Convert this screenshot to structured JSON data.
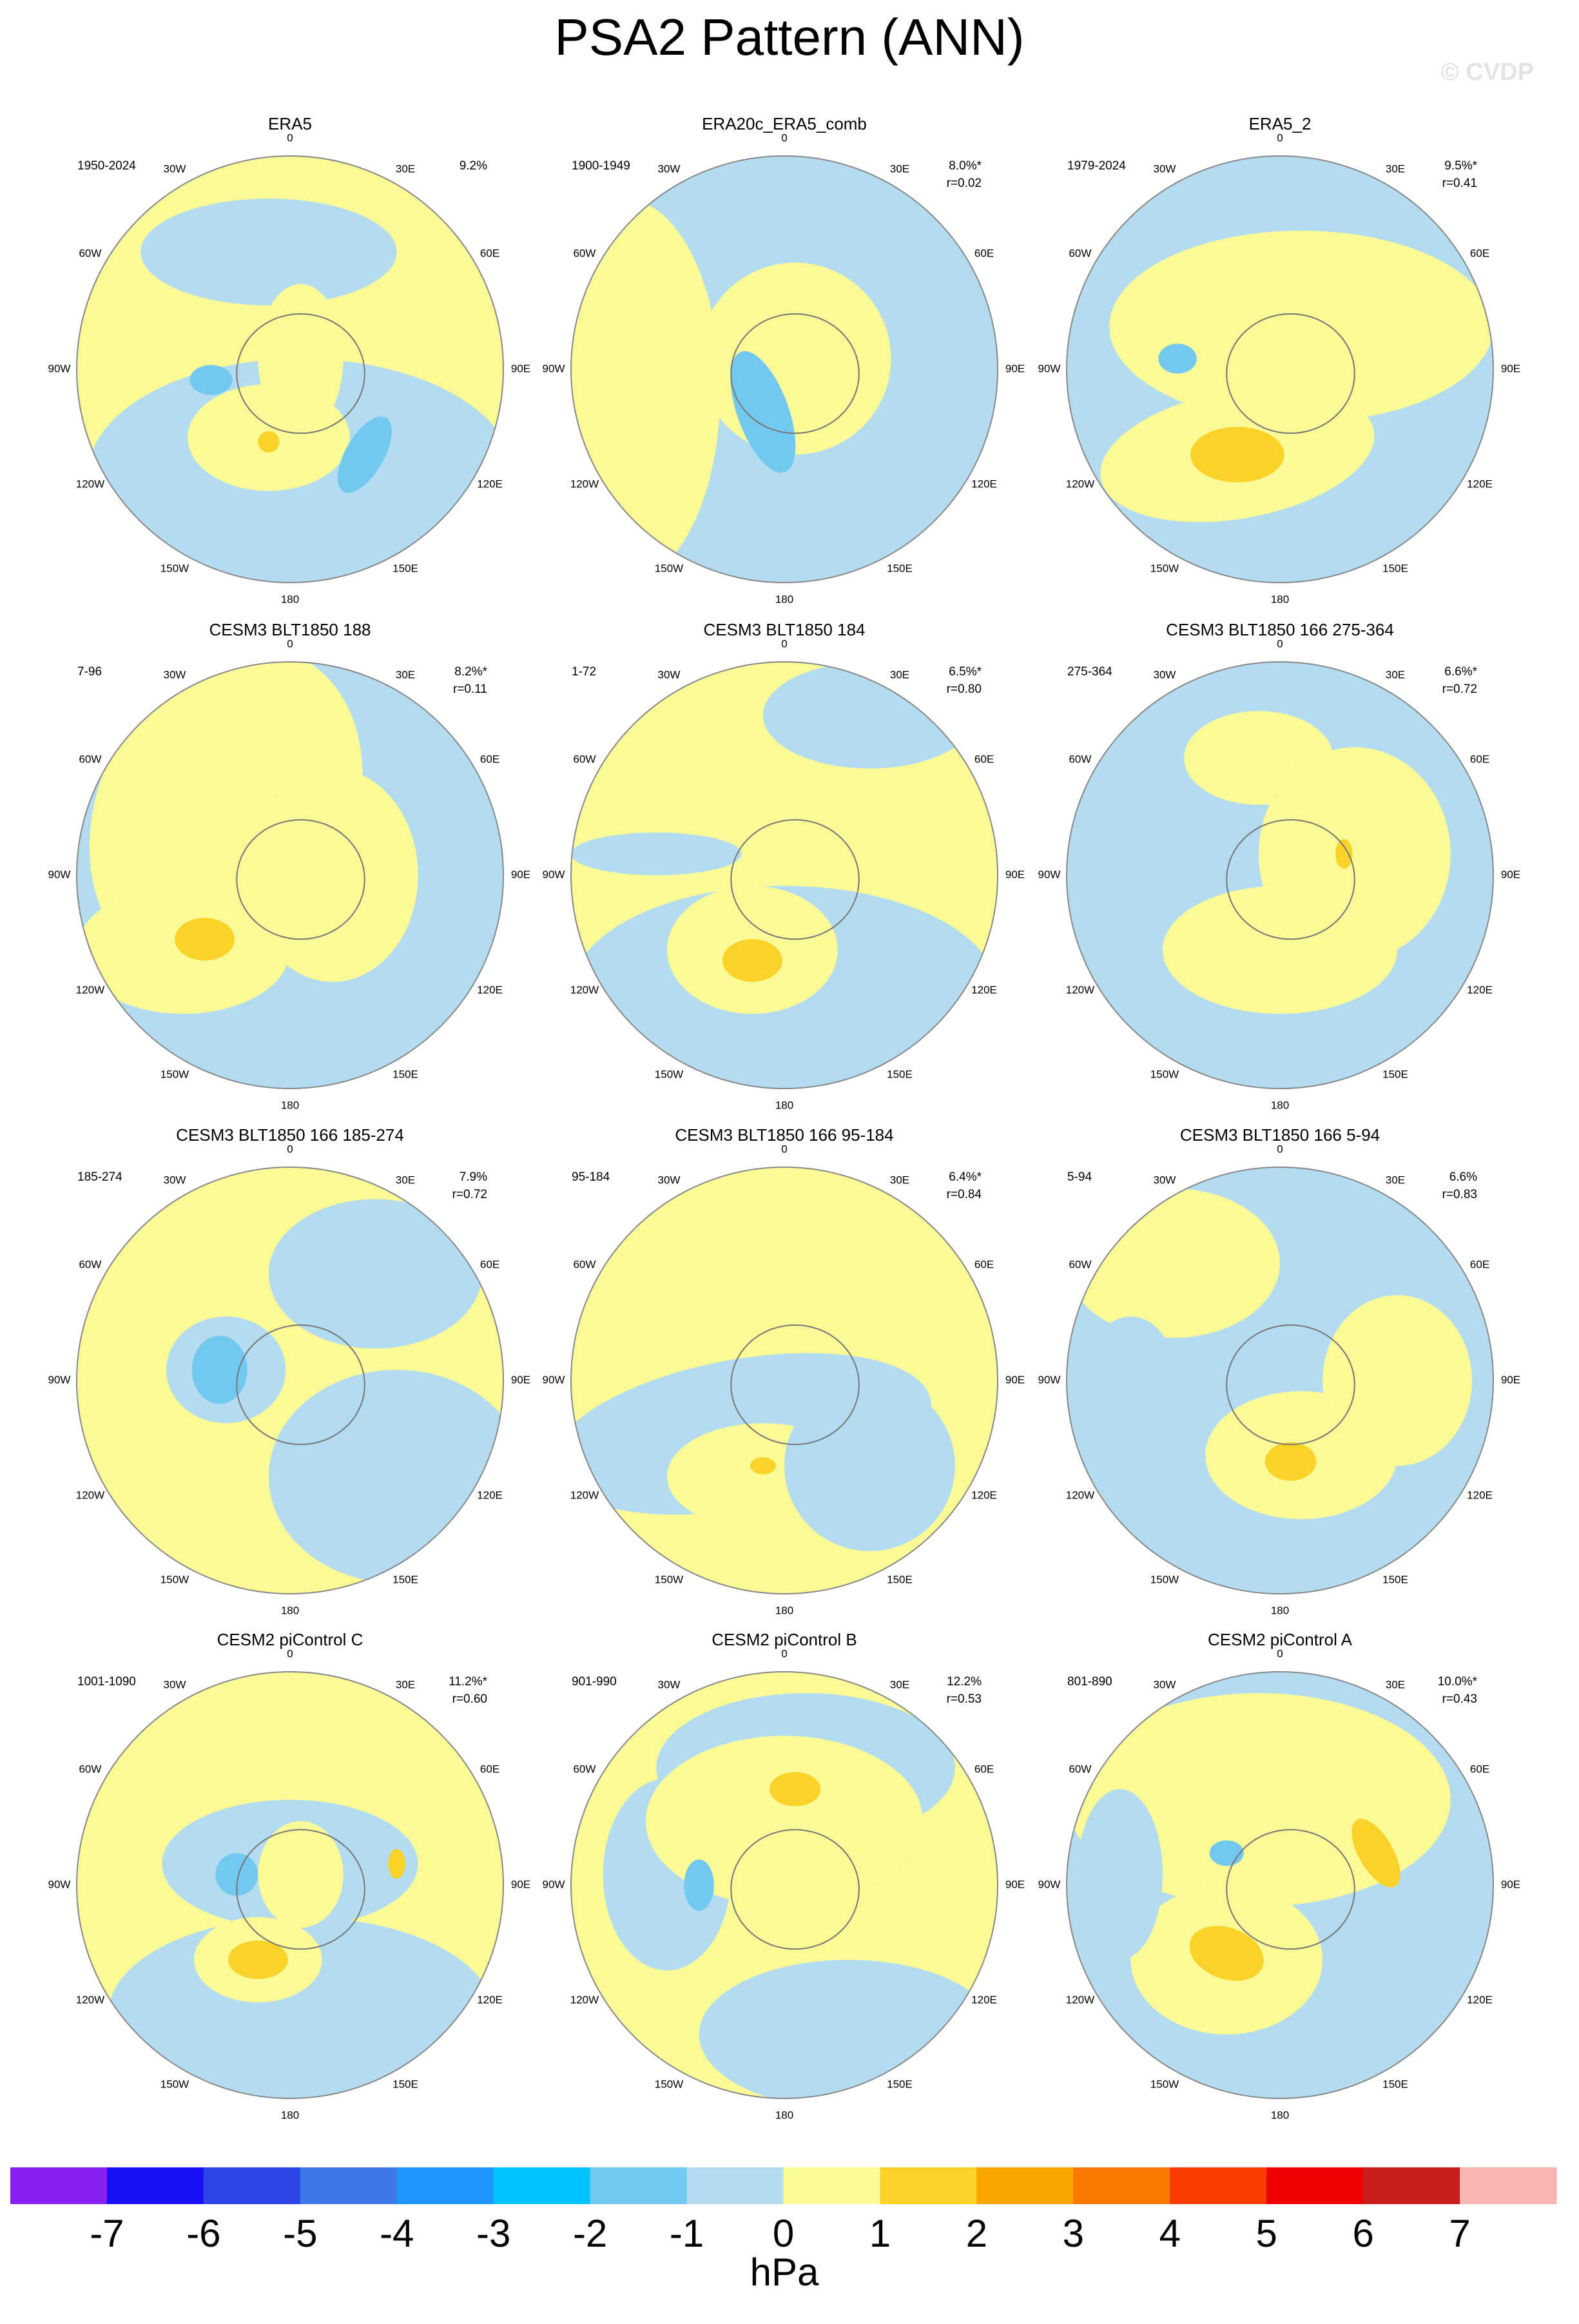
{
  "header": {
    "title": "PSA2 Pattern (ANN)",
    "watermark": "© CVDP"
  },
  "longitude_labels": [
    "0",
    "30E",
    "60E",
    "90E",
    "120E",
    "150E",
    "180",
    "150W",
    "120W",
    "90W",
    "60W",
    "30W"
  ],
  "panels": [
    {
      "title": "ERA5",
      "period": "1950-2024",
      "variance": "9.2%"
    },
    {
      "title": "ERA20c_ERA5_comb",
      "period": "1900-1949",
      "variance": "8.0%*",
      "correlation": "r=0.02"
    },
    {
      "title": "ERA5_2",
      "period": "1979-2024",
      "variance": "9.5%*",
      "correlation": "r=0.41"
    },
    {
      "title": "CESM3 BLT1850 188",
      "period": "7-96",
      "variance": "8.2%*",
      "correlation": "r=0.11"
    },
    {
      "title": "CESM3 BLT1850 184",
      "period": "1-72",
      "variance": "6.5%*",
      "correlation": "r=0.80"
    },
    {
      "title": "CESM3 BLT1850 166 275-364",
      "period": "275-364",
      "variance": "6.6%*",
      "correlation": "r=0.72"
    },
    {
      "title": "CESM3 BLT1850 166 185-274",
      "period": "185-274",
      "variance": "7.9%",
      "correlation": "r=0.72"
    },
    {
      "title": "CESM3 BLT1850 166 95-184",
      "period": "95-184",
      "variance": "6.4%*",
      "correlation": "r=0.84"
    },
    {
      "title": "CESM3 BLT1850 166 5-94",
      "period": "5-94",
      "variance": "6.6%",
      "correlation": "r=0.83"
    },
    {
      "title": "CESM2 piControl C",
      "period": "1001-1090",
      "variance": "11.2%*",
      "correlation": "r=0.60"
    },
    {
      "title": "CESM2 piControl B",
      "period": "901-990",
      "variance": "12.2%",
      "correlation": "r=0.53"
    },
    {
      "title": "CESM2 piControl A",
      "period": "801-890",
      "variance": "10.0%*",
      "correlation": "r=0.43"
    }
  ],
  "colorbar": {
    "colors": [
      "#8b1ef0",
      "#1a10f5",
      "#2d46e6",
      "#3c78e6",
      "#1e96ff",
      "#00c3ff",
      "#73c8f0",
      "#b4dcf0",
      "#fafa96",
      "#fad228",
      "#faa500",
      "#fa7800",
      "#fa3c00",
      "#f00000",
      "#c81e1e",
      "#fab4b4"
    ],
    "ticks": [
      -7,
      -6,
      -5,
      -4,
      -3,
      -2,
      -1,
      0,
      1,
      2,
      3,
      4,
      5,
      6,
      7
    ],
    "unit": "hPa"
  }
}
